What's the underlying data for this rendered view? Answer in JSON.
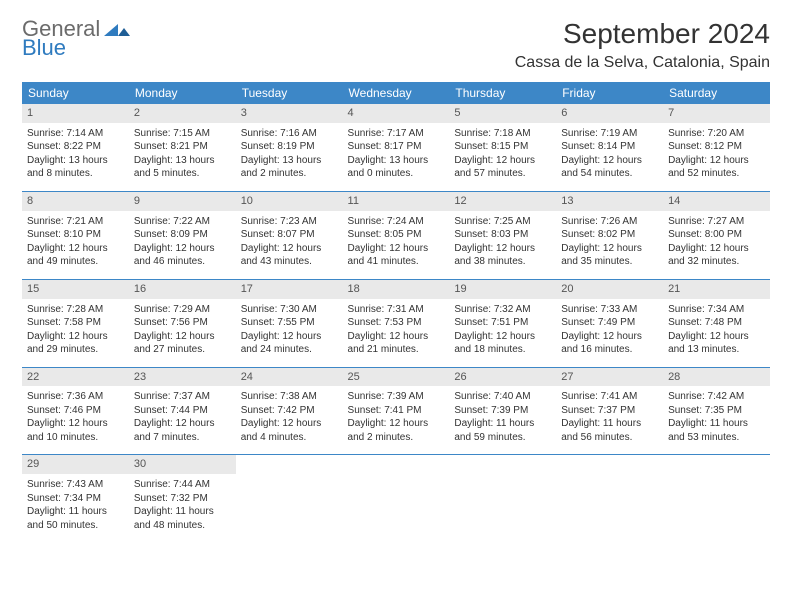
{
  "brand": {
    "part1": "General",
    "part2": "Blue"
  },
  "title": "September 2024",
  "location": "Cassa de la Selva, Catalonia, Spain",
  "colors": {
    "header_bg": "#3d87c7",
    "header_fg": "#ffffff",
    "daynum_bg": "#e9e9e9",
    "rule": "#3d87c7",
    "text": "#333333",
    "logo_gray": "#6b6b6b",
    "logo_blue": "#2f7bbf"
  },
  "day_headers": [
    "Sunday",
    "Monday",
    "Tuesday",
    "Wednesday",
    "Thursday",
    "Friday",
    "Saturday"
  ],
  "weeks": [
    [
      {
        "n": "1",
        "sr": "Sunrise: 7:14 AM",
        "ss": "Sunset: 8:22 PM",
        "dl": "Daylight: 13 hours and 8 minutes."
      },
      {
        "n": "2",
        "sr": "Sunrise: 7:15 AM",
        "ss": "Sunset: 8:21 PM",
        "dl": "Daylight: 13 hours and 5 minutes."
      },
      {
        "n": "3",
        "sr": "Sunrise: 7:16 AM",
        "ss": "Sunset: 8:19 PM",
        "dl": "Daylight: 13 hours and 2 minutes."
      },
      {
        "n": "4",
        "sr": "Sunrise: 7:17 AM",
        "ss": "Sunset: 8:17 PM",
        "dl": "Daylight: 13 hours and 0 minutes."
      },
      {
        "n": "5",
        "sr": "Sunrise: 7:18 AM",
        "ss": "Sunset: 8:15 PM",
        "dl": "Daylight: 12 hours and 57 minutes."
      },
      {
        "n": "6",
        "sr": "Sunrise: 7:19 AM",
        "ss": "Sunset: 8:14 PM",
        "dl": "Daylight: 12 hours and 54 minutes."
      },
      {
        "n": "7",
        "sr": "Sunrise: 7:20 AM",
        "ss": "Sunset: 8:12 PM",
        "dl": "Daylight: 12 hours and 52 minutes."
      }
    ],
    [
      {
        "n": "8",
        "sr": "Sunrise: 7:21 AM",
        "ss": "Sunset: 8:10 PM",
        "dl": "Daylight: 12 hours and 49 minutes."
      },
      {
        "n": "9",
        "sr": "Sunrise: 7:22 AM",
        "ss": "Sunset: 8:09 PM",
        "dl": "Daylight: 12 hours and 46 minutes."
      },
      {
        "n": "10",
        "sr": "Sunrise: 7:23 AM",
        "ss": "Sunset: 8:07 PM",
        "dl": "Daylight: 12 hours and 43 minutes."
      },
      {
        "n": "11",
        "sr": "Sunrise: 7:24 AM",
        "ss": "Sunset: 8:05 PM",
        "dl": "Daylight: 12 hours and 41 minutes."
      },
      {
        "n": "12",
        "sr": "Sunrise: 7:25 AM",
        "ss": "Sunset: 8:03 PM",
        "dl": "Daylight: 12 hours and 38 minutes."
      },
      {
        "n": "13",
        "sr": "Sunrise: 7:26 AM",
        "ss": "Sunset: 8:02 PM",
        "dl": "Daylight: 12 hours and 35 minutes."
      },
      {
        "n": "14",
        "sr": "Sunrise: 7:27 AM",
        "ss": "Sunset: 8:00 PM",
        "dl": "Daylight: 12 hours and 32 minutes."
      }
    ],
    [
      {
        "n": "15",
        "sr": "Sunrise: 7:28 AM",
        "ss": "Sunset: 7:58 PM",
        "dl": "Daylight: 12 hours and 29 minutes."
      },
      {
        "n": "16",
        "sr": "Sunrise: 7:29 AM",
        "ss": "Sunset: 7:56 PM",
        "dl": "Daylight: 12 hours and 27 minutes."
      },
      {
        "n": "17",
        "sr": "Sunrise: 7:30 AM",
        "ss": "Sunset: 7:55 PM",
        "dl": "Daylight: 12 hours and 24 minutes."
      },
      {
        "n": "18",
        "sr": "Sunrise: 7:31 AM",
        "ss": "Sunset: 7:53 PM",
        "dl": "Daylight: 12 hours and 21 minutes."
      },
      {
        "n": "19",
        "sr": "Sunrise: 7:32 AM",
        "ss": "Sunset: 7:51 PM",
        "dl": "Daylight: 12 hours and 18 minutes."
      },
      {
        "n": "20",
        "sr": "Sunrise: 7:33 AM",
        "ss": "Sunset: 7:49 PM",
        "dl": "Daylight: 12 hours and 16 minutes."
      },
      {
        "n": "21",
        "sr": "Sunrise: 7:34 AM",
        "ss": "Sunset: 7:48 PM",
        "dl": "Daylight: 12 hours and 13 minutes."
      }
    ],
    [
      {
        "n": "22",
        "sr": "Sunrise: 7:36 AM",
        "ss": "Sunset: 7:46 PM",
        "dl": "Daylight: 12 hours and 10 minutes."
      },
      {
        "n": "23",
        "sr": "Sunrise: 7:37 AM",
        "ss": "Sunset: 7:44 PM",
        "dl": "Daylight: 12 hours and 7 minutes."
      },
      {
        "n": "24",
        "sr": "Sunrise: 7:38 AM",
        "ss": "Sunset: 7:42 PM",
        "dl": "Daylight: 12 hours and 4 minutes."
      },
      {
        "n": "25",
        "sr": "Sunrise: 7:39 AM",
        "ss": "Sunset: 7:41 PM",
        "dl": "Daylight: 12 hours and 2 minutes."
      },
      {
        "n": "26",
        "sr": "Sunrise: 7:40 AM",
        "ss": "Sunset: 7:39 PM",
        "dl": "Daylight: 11 hours and 59 minutes."
      },
      {
        "n": "27",
        "sr": "Sunrise: 7:41 AM",
        "ss": "Sunset: 7:37 PM",
        "dl": "Daylight: 11 hours and 56 minutes."
      },
      {
        "n": "28",
        "sr": "Sunrise: 7:42 AM",
        "ss": "Sunset: 7:35 PM",
        "dl": "Daylight: 11 hours and 53 minutes."
      }
    ],
    [
      {
        "n": "29",
        "sr": "Sunrise: 7:43 AM",
        "ss": "Sunset: 7:34 PM",
        "dl": "Daylight: 11 hours and 50 minutes."
      },
      {
        "n": "30",
        "sr": "Sunrise: 7:44 AM",
        "ss": "Sunset: 7:32 PM",
        "dl": "Daylight: 11 hours and 48 minutes."
      },
      null,
      null,
      null,
      null,
      null
    ]
  ]
}
